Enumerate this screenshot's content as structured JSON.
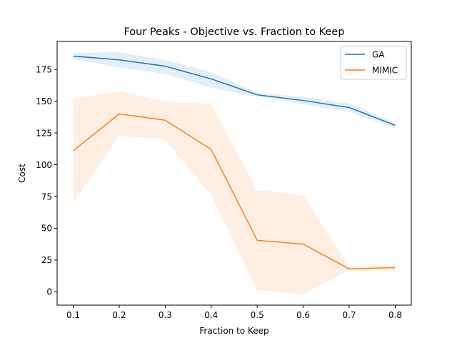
{
  "chart_data": {
    "type": "line",
    "title": "Four Peaks - Objective vs. Fraction to Keep",
    "xlabel": "Fraction to Keep",
    "ylabel": "Cost",
    "x": [
      0.1,
      0.2,
      0.3,
      0.4,
      0.5,
      0.6,
      0.7,
      0.8
    ],
    "xticks": [
      "0.1",
      "0.2",
      "0.3",
      "0.4",
      "0.5",
      "0.6",
      "0.7",
      "0.8"
    ],
    "yticks": [
      0,
      25,
      50,
      75,
      100,
      125,
      150,
      175
    ],
    "xlim": [
      0.065,
      0.835
    ],
    "ylim": [
      -10.5,
      197
    ],
    "grid": false,
    "legend_position": "top-right",
    "series": [
      {
        "name": "GA",
        "color": "#1f77b4",
        "values": [
          185.5,
          182.5,
          177.5,
          167.5,
          155,
          150.5,
          145,
          131
        ],
        "band_low": [
          183,
          176.5,
          171.5,
          160.5,
          153.5,
          147.5,
          141.5,
          129
        ],
        "band_high": [
          188,
          188.5,
          182.5,
          173,
          156.5,
          153.5,
          148.5,
          133
        ]
      },
      {
        "name": "MIMIC",
        "color": "#ff7f0e",
        "values": [
          111,
          140,
          135,
          112,
          40.5,
          37.5,
          18,
          19
        ],
        "band_low": [
          70,
          122.5,
          119.5,
          76,
          1,
          -2,
          17,
          16.5
        ],
        "band_high": [
          152,
          158,
          150,
          147.5,
          80,
          76,
          20,
          20
        ]
      }
    ]
  }
}
